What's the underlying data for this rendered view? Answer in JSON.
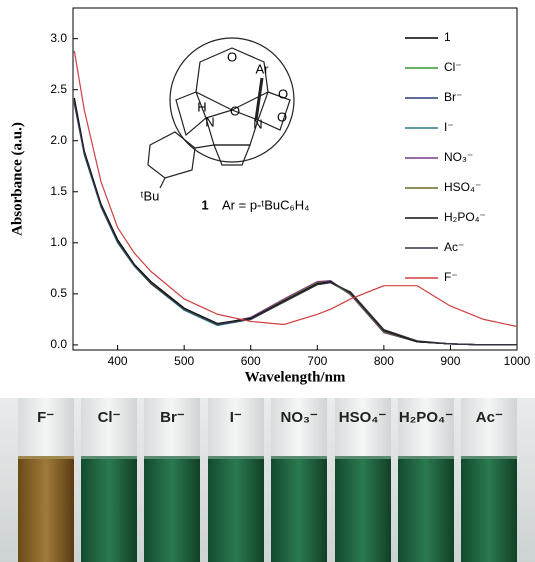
{
  "chart_data": {
    "type": "line",
    "y_label": "Absorbance (a.u.)",
    "x_label": "Wavelength/nm",
    "xlim": [
      333,
      1000
    ],
    "xticks": [
      400,
      500,
      600,
      700,
      800,
      900,
      1000
    ],
    "ylim": [
      -0.05,
      3.3
    ],
    "yticks": [
      {
        "value": 0,
        "label": "0.0"
      },
      0.5,
      {
        "value": 1,
        "label": "1.0"
      },
      1.5,
      {
        "value": 2,
        "label": "2.0"
      },
      2.5,
      {
        "value": 3,
        "label": "3.0"
      }
    ],
    "x": [
      335,
      350,
      375,
      400,
      425,
      450,
      500,
      550,
      600,
      650,
      700,
      720,
      750,
      800,
      850,
      900,
      950,
      1000
    ],
    "series": [
      {
        "name": "1",
        "color": "#000000",
        "values": [
          2.42,
          1.9,
          1.38,
          1.03,
          0.79,
          0.62,
          0.36,
          0.2,
          0.25,
          0.42,
          0.59,
          0.61,
          0.5,
          0.13,
          0.03,
          0.01,
          0.0,
          0.0
        ]
      },
      {
        "name": "Cl⁻",
        "color": "#3a9a3a",
        "values": [
          2.4,
          1.88,
          1.37,
          1.02,
          0.78,
          0.61,
          0.35,
          0.2,
          0.26,
          0.44,
          0.61,
          0.62,
          0.49,
          0.12,
          0.03,
          0.01,
          0.0,
          0.0
        ]
      },
      {
        "name": "Br⁻",
        "color": "#2a3a7a",
        "values": [
          2.38,
          1.87,
          1.36,
          1.01,
          0.78,
          0.61,
          0.35,
          0.2,
          0.26,
          0.43,
          0.6,
          0.62,
          0.5,
          0.13,
          0.03,
          0.01,
          0.0,
          0.0
        ]
      },
      {
        "name": "I⁻",
        "color": "#2a7a8a",
        "values": [
          2.36,
          1.86,
          1.35,
          1.0,
          0.77,
          0.6,
          0.34,
          0.19,
          0.25,
          0.42,
          0.6,
          0.62,
          0.51,
          0.14,
          0.03,
          0.01,
          0.0,
          0.0
        ]
      },
      {
        "name": "NO₃⁻",
        "color": "#7a3a8a",
        "values": [
          2.4,
          1.89,
          1.37,
          1.02,
          0.78,
          0.61,
          0.35,
          0.2,
          0.27,
          0.45,
          0.62,
          0.63,
          0.49,
          0.12,
          0.03,
          0.01,
          0.0,
          0.0
        ]
      },
      {
        "name": "HSO₄⁻",
        "color": "#6a6a2a",
        "values": [
          2.39,
          1.88,
          1.37,
          1.02,
          0.78,
          0.61,
          0.35,
          0.2,
          0.26,
          0.44,
          0.61,
          0.62,
          0.5,
          0.13,
          0.03,
          0.01,
          0.0,
          0.0
        ]
      },
      {
        "name": "H₂PO₄⁻",
        "color": "#111111",
        "values": [
          2.41,
          1.89,
          1.38,
          1.03,
          0.79,
          0.62,
          0.36,
          0.21,
          0.26,
          0.43,
          0.6,
          0.62,
          0.51,
          0.14,
          0.03,
          0.01,
          0.0,
          0.0
        ]
      },
      {
        "name": "Ac⁻",
        "color": "#333344",
        "values": [
          2.37,
          1.87,
          1.36,
          1.01,
          0.78,
          0.6,
          0.35,
          0.2,
          0.25,
          0.42,
          0.59,
          0.61,
          0.52,
          0.15,
          0.04,
          0.01,
          0.0,
          0.0
        ]
      },
      {
        "name": "F⁻",
        "color": "#d04040",
        "values": [
          2.88,
          2.3,
          1.6,
          1.15,
          0.9,
          0.72,
          0.45,
          0.3,
          0.23,
          0.2,
          0.3,
          0.35,
          0.45,
          0.58,
          0.58,
          0.38,
          0.25,
          0.18
        ]
      }
    ],
    "annotations": [
      "O",
      "Ar",
      "O",
      "H",
      "N",
      "O",
      "N",
      "O",
      "ᵗBu",
      "1",
      "Ar = p-ᵗBuC₆H₄"
    ]
  },
  "photo": {
    "labels": [
      "F⁻",
      "Cl⁻",
      "Br⁻",
      "I⁻",
      "NO₃⁻",
      "HSO₄⁻",
      "H₂PO₄⁻",
      "Ac⁻"
    ]
  }
}
